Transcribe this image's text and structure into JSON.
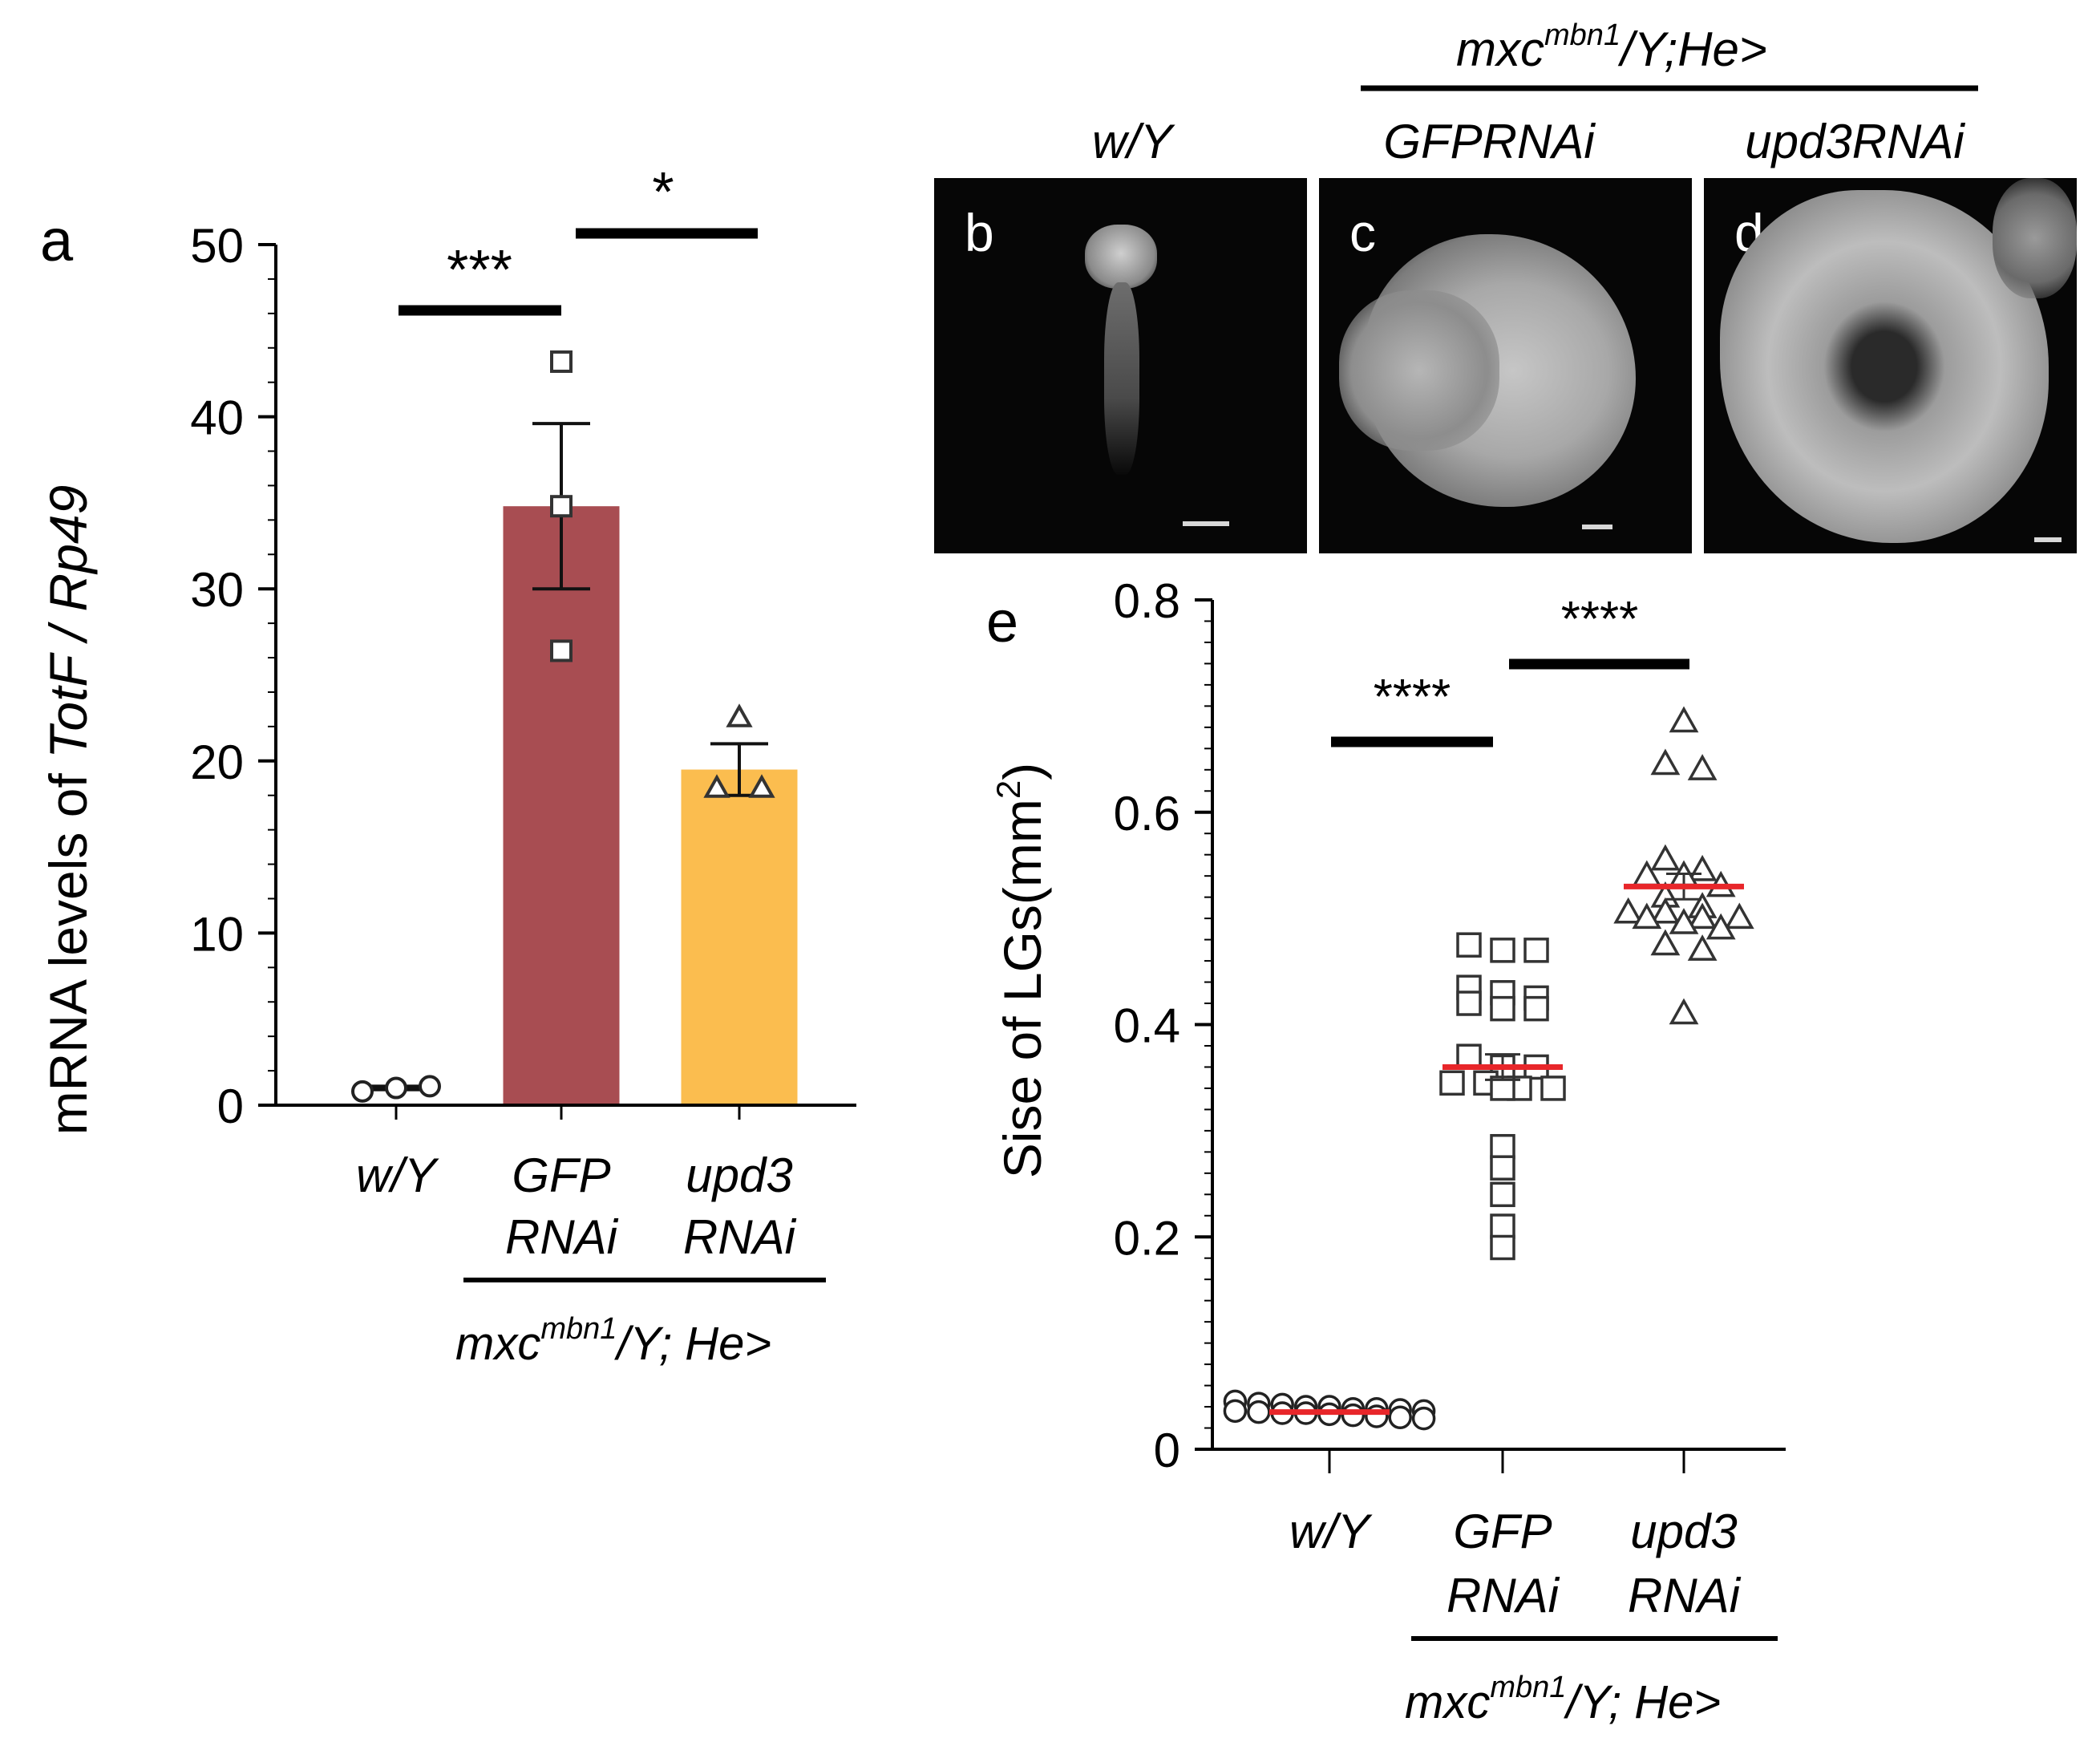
{
  "panel_a": {
    "letter": "a",
    "ylabel_prefix": "mRNA levels of ",
    "ylabel_gene": "TotF / Rp49",
    "yticks": [
      "0",
      "10",
      "20",
      "30",
      "40",
      "50"
    ],
    "groups": [
      {
        "line1": "w/Y",
        "line2": ""
      },
      {
        "line1": "GFP",
        "line2": "RNAi"
      },
      {
        "line1": "upd3",
        "line2": "RNAi"
      }
    ],
    "genotype_base": "mxc",
    "genotype_sup": "mbn1",
    "genotype_suffix": "/Y; He>",
    "sig_left": "***",
    "sig_right": "*"
  },
  "micrographs": {
    "genotype_base": "mxc",
    "genotype_sup": "mbn1",
    "genotype_suffix": "/Y;He>",
    "columns": [
      "w/Y",
      "GFPRNAi",
      "upd3RNAi"
    ],
    "panels": [
      "b",
      "c",
      "d"
    ]
  },
  "panel_e": {
    "letter": "e",
    "ylabel": "Sise of LGs(mm",
    "ylabel_sup": "2",
    "ylabel_end": ")",
    "yticks": [
      "0",
      "0.2",
      "0.4",
      "0.6",
      "0.8"
    ],
    "groups": [
      {
        "line1": "w/Y",
        "line2": ""
      },
      {
        "line1": "GFP",
        "line2": "RNAi"
      },
      {
        "line1": "upd3",
        "line2": "RNAi"
      }
    ],
    "genotype_base": "mxc",
    "genotype_sup": "mbn1",
    "genotype_suffix": "/Y; He>",
    "sig_left": "****",
    "sig_right": "****"
  },
  "chart_data": [
    {
      "type": "bar",
      "title": "",
      "ylabel": "mRNA levels of TotF / Rp49",
      "ylim": [
        0,
        50
      ],
      "categories": [
        "w/Y",
        "GFP RNAi",
        "upd3 RNAi"
      ],
      "values": [
        1.0,
        34.8,
        19.5
      ],
      "error": [
        0.1,
        4.8,
        1.5
      ],
      "bar_colors": [
        "#ffffff",
        "#a84d52",
        "#fbbd4f"
      ],
      "points": [
        {
          "marker": "circle",
          "values": [
            0.8,
            1.0,
            1.1
          ]
        },
        {
          "marker": "square",
          "values": [
            43.2,
            34.8,
            26.4
          ]
        },
        {
          "marker": "triangle",
          "values": [
            22.5,
            18.4,
            18.4
          ]
        }
      ],
      "significance": [
        "***",
        "*"
      ]
    },
    {
      "type": "scatter",
      "title": "",
      "ylabel": "Sise of LGs(mm2)",
      "ylim": [
        0,
        0.8
      ],
      "categories": [
        "w/Y",
        "GFP RNAi",
        "upd3 RNAi"
      ],
      "mean_color": "#e8262a",
      "series": [
        {
          "category": "w/Y",
          "marker": "circle",
          "mean": 0.035,
          "values": [
            0.045,
            0.042,
            0.04,
            0.038,
            0.036,
            0.034,
            0.032,
            0.03,
            0.04,
            0.038,
            0.035,
            0.033,
            0.031,
            0.043,
            0.037,
            0.029,
            0.036,
            0.034
          ]
        },
        {
          "category": "GFP RNAi",
          "marker": "square",
          "mean": 0.36,
          "values": [
            0.47,
            0.475,
            0.47,
            0.435,
            0.43,
            0.425,
            0.42,
            0.415,
            0.415,
            0.37,
            0.36,
            0.36,
            0.345,
            0.345,
            0.34,
            0.34,
            0.34,
            0.285,
            0.265,
            0.24,
            0.21,
            0.19
          ]
        },
        {
          "category": "upd3 RNAi",
          "marker": "triangle",
          "mean": 0.53,
          "values": [
            0.685,
            0.645,
            0.64,
            0.555,
            0.545,
            0.54,
            0.54,
            0.53,
            0.52,
            0.51,
            0.505,
            0.505,
            0.5,
            0.5,
            0.5,
            0.495,
            0.49,
            0.475,
            0.47,
            0.41
          ]
        }
      ],
      "significance": [
        "****",
        "****"
      ]
    }
  ]
}
